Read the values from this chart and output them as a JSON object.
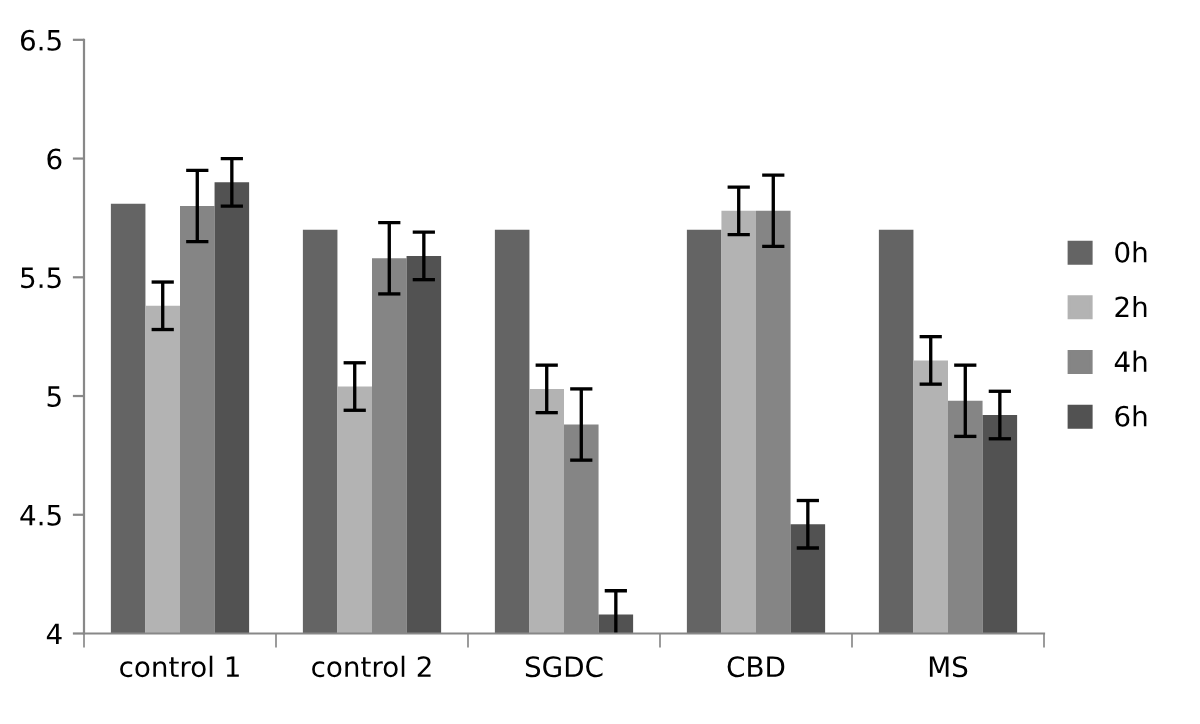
{
  "chart_data": {
    "type": "bar",
    "categories": [
      "control 1",
      "control 2",
      "SGDC",
      "CBD",
      "MS"
    ],
    "series": [
      {
        "name": "0h",
        "color": "#646464",
        "values": [
          5.81,
          5.7,
          5.7,
          5.7,
          5.7
        ]
      },
      {
        "name": "2h",
        "color": "#b3b3b3",
        "values": [
          5.38,
          5.04,
          5.03,
          5.78,
          5.15
        ],
        "errors": [
          0.1,
          0.1,
          0.1,
          0.1,
          0.1
        ]
      },
      {
        "name": "4h",
        "color": "#858585",
        "values": [
          5.8,
          5.58,
          4.88,
          5.78,
          4.98
        ],
        "errors": [
          0.15,
          0.15,
          0.15,
          0.15,
          0.15
        ]
      },
      {
        "name": "6h",
        "color": "#525252",
        "values": [
          5.9,
          5.59,
          4.08,
          4.46,
          4.92
        ],
        "errors": [
          0.1,
          0.1,
          0.1,
          0.1,
          0.1
        ]
      }
    ],
    "ylim": [
      4,
      6.5
    ],
    "yticks": [
      4,
      4.5,
      5,
      5.5,
      6,
      6.5
    ],
    "grid": false,
    "legend": "right"
  }
}
